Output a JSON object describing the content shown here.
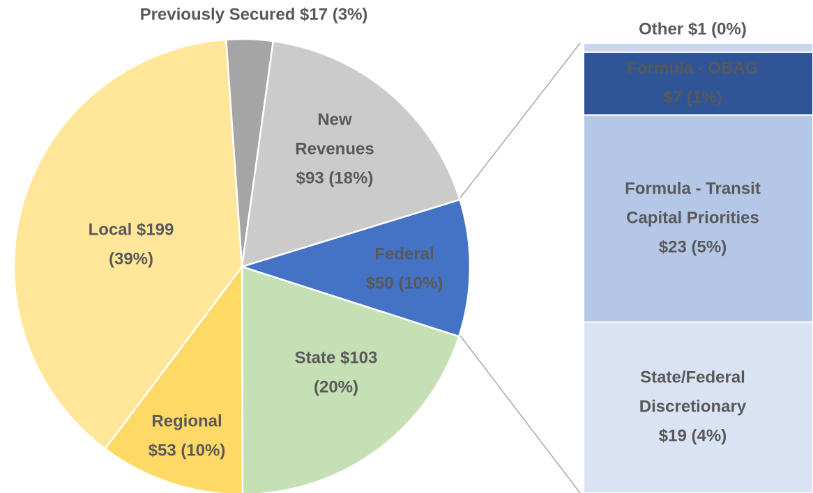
{
  "chart_data": [
    {
      "type": "pie",
      "categories": [
        "Previously Secured",
        "New Revenues",
        "Federal",
        "State",
        "Regional",
        "Local"
      ],
      "values": [
        17,
        93,
        50,
        103,
        53,
        199
      ],
      "value_labels": [
        [
          "Previously Secured $17 (3%)"
        ],
        [
          "New",
          "Revenues",
          "$93 (18%)"
        ],
        [
          "Federal",
          "$50 (10%)"
        ],
        [
          "State $103",
          "(20%)"
        ],
        [
          "Regional",
          "$53 (10%)"
        ],
        [
          "Local $199",
          "(39%)"
        ]
      ],
      "colors": [
        "#a5a5a5",
        "#cbcbcb",
        "#4472c4",
        "#c5e0b4",
        "#ffd966",
        "#ffe699"
      ]
    },
    {
      "type": "bar",
      "categories": [
        "Other",
        "Formula - OBAG",
        "Formula - Transit Capital Priorities",
        "State/Federal Discretionary"
      ],
      "values": [
        1,
        7,
        23,
        19
      ],
      "value_labels": [
        [
          "Other $1 (0%)"
        ],
        [
          "Formula - OBAG",
          "$7 (1%)"
        ],
        [
          "Formula - Transit",
          "Capital Priorities",
          "$23 (5%)"
        ],
        [
          "State/Federal",
          "Discretionary",
          "$19 (4%)"
        ]
      ],
      "colors": [
        "#c9d6ef",
        "#2f5597",
        "#b4c7e7",
        "#dae3f3"
      ]
    }
  ]
}
